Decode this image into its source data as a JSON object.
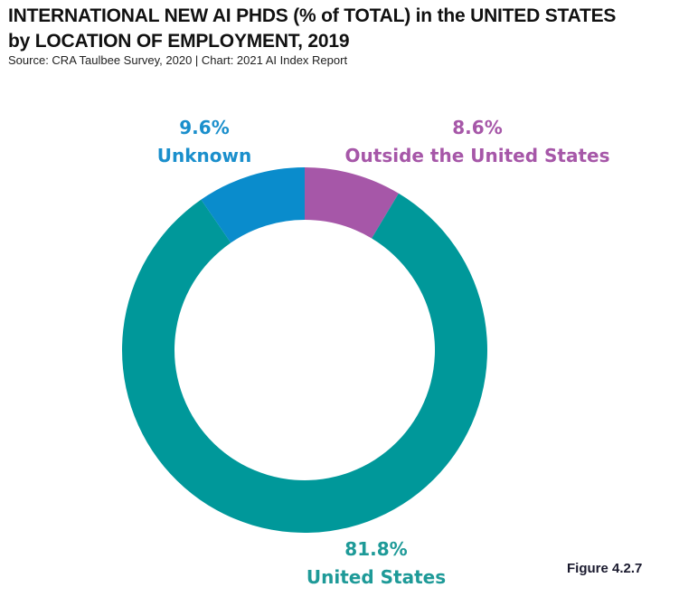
{
  "chart_data": {
    "type": "pie",
    "variant": "donut",
    "title": "INTERNATIONAL NEW AI PHDS (% of TOTAL) in the UNITED STATES by LOCATION OF EMPLOYMENT, 2019",
    "title_lines": [
      "INTERNATIONAL NEW AI PHDS (% of TOTAL) in the UNITED STATES",
      "by LOCATION OF EMPLOYMENT, 2019"
    ],
    "subtitle": "Source: CRA Taulbee Survey, 2020 | Chart: 2021 AI Index Report",
    "slices": [
      {
        "name": "Outside the United States",
        "value": 8.6,
        "label": "8.6%",
        "color": "#a657a8"
      },
      {
        "name": "United States",
        "value": 81.8,
        "label": "81.8%",
        "color": "#00989a"
      },
      {
        "name": "Unknown",
        "value": 9.6,
        "label": "9.6%",
        "color": "#0a8ccc"
      }
    ],
    "start_angle": "12 o'clock",
    "direction": "clockwise"
  },
  "figure_label": "Figure 4.2.7",
  "label_colors": {
    "Outside the United States": "#a657a8",
    "United States": "#1e9a98",
    "Unknown": "#1a8fcc"
  }
}
